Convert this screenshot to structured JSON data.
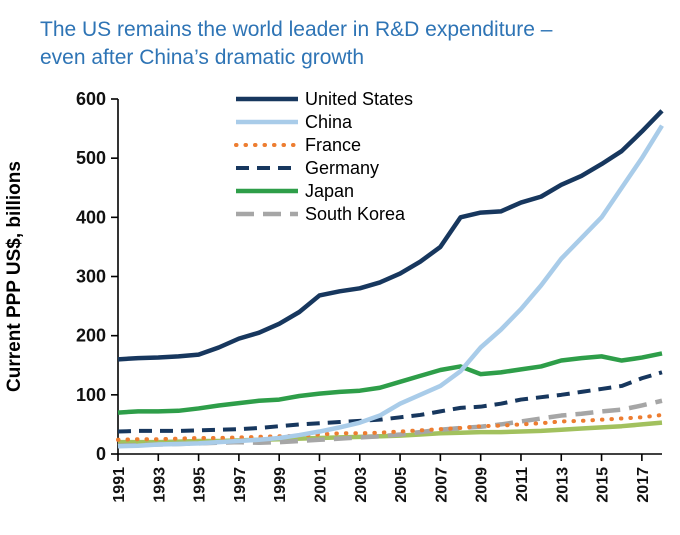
{
  "title": {
    "line1": "The US remains the world leader in R&D expenditure –",
    "line2": "even after China’s dramatic growth"
  },
  "colors": {
    "title_blue": "#2E74B5",
    "axis_black": "#000000"
  },
  "chart_data": {
    "type": "line",
    "title": "The US remains the world leader in R&D expenditure – even after China’s dramatic growth",
    "xlabel": "",
    "ylabel": "Current PPP US$, billions",
    "ylim": [
      0,
      600
    ],
    "ytick_step": 100,
    "grid": false,
    "legend_position": "top-left-inside",
    "x": [
      1991,
      1992,
      1993,
      1994,
      1995,
      1996,
      1997,
      1998,
      1999,
      2000,
      2001,
      2002,
      2003,
      2004,
      2005,
      2006,
      2007,
      2008,
      2009,
      2010,
      2011,
      2012,
      2013,
      2014,
      2015,
      2016,
      2017,
      2018
    ],
    "xticks": [
      1991,
      1993,
      1995,
      1997,
      1999,
      2001,
      2003,
      2005,
      2007,
      2009,
      2011,
      2013,
      2015,
      2017
    ],
    "series": [
      {
        "name": "United States",
        "color": "#17375E",
        "style": "solid",
        "width": 4.5,
        "values": [
          160,
          162,
          163,
          165,
          168,
          180,
          195,
          205,
          220,
          240,
          268,
          275,
          280,
          290,
          305,
          325,
          350,
          400,
          408,
          410,
          425,
          435,
          455,
          470,
          490,
          512,
          545,
          580
        ]
      },
      {
        "name": "China",
        "color": "#A9CCE9",
        "style": "solid",
        "width": 4.5,
        "values": [
          13,
          14,
          16,
          17,
          18,
          20,
          22,
          24,
          27,
          32,
          38,
          45,
          53,
          65,
          85,
          100,
          115,
          140,
          180,
          210,
          245,
          285,
          330,
          365,
          400,
          450,
          500,
          555
        ]
      },
      {
        "name": "France",
        "color": "#ED7D31",
        "style": "dotted",
        "width": 4,
        "values": [
          24,
          25,
          25,
          26,
          27,
          27,
          28,
          29,
          30,
          31,
          33,
          35,
          35,
          36,
          38,
          40,
          42,
          44,
          47,
          48,
          50,
          52,
          55,
          56,
          58,
          60,
          62,
          66
        ]
      },
      {
        "name": "Germany",
        "color": "#17375E",
        "style": "dashed",
        "width": 4,
        "values": [
          38,
          39,
          39,
          39,
          40,
          41,
          42,
          44,
          47,
          50,
          52,
          54,
          56,
          58,
          62,
          66,
          72,
          78,
          80,
          85,
          92,
          96,
          100,
          105,
          110,
          115,
          128,
          138
        ]
      },
      {
        "name": "Japan",
        "color": "#2E9E49",
        "style": "solid",
        "width": 4.5,
        "values": [
          70,
          72,
          72,
          73,
          77,
          82,
          86,
          90,
          92,
          98,
          102,
          105,
          107,
          112,
          122,
          132,
          142,
          148,
          135,
          138,
          143,
          148,
          158,
          162,
          165,
          158,
          163,
          170
        ]
      },
      {
        "name": "South Korea",
        "color": "#A6A6A6",
        "style": "longdash",
        "width": 4.5,
        "values": [
          14,
          15,
          16,
          17,
          18,
          19,
          20,
          19,
          20,
          22,
          24,
          26,
          28,
          30,
          33,
          37,
          41,
          44,
          46,
          50,
          55,
          60,
          65,
          68,
          72,
          75,
          82,
          90
        ]
      },
      {
        "name": "",
        "color": "#A2C15E",
        "style": "solid",
        "width": 4.5,
        "values": [
          20,
          20,
          20,
          21,
          22,
          22,
          23,
          24,
          25,
          26,
          27,
          28,
          29,
          30,
          31,
          33,
          35,
          36,
          37,
          37,
          38,
          39,
          41,
          43,
          45,
          47,
          50,
          53
        ]
      }
    ]
  }
}
